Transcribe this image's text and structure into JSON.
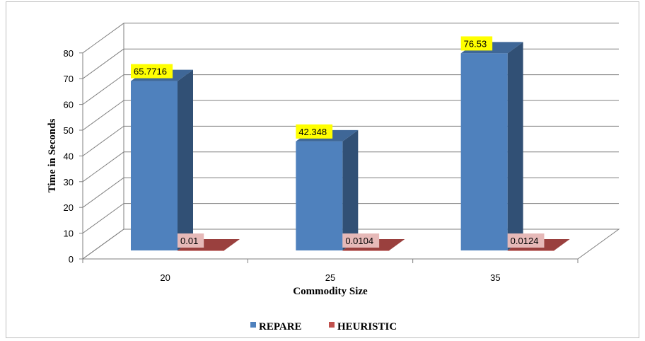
{
  "chart_data": {
    "type": "bar",
    "categories": [
      "20",
      "25",
      "35"
    ],
    "series": [
      {
        "name": "REPARE",
        "values": [
          65.7716,
          42.348,
          76.53
        ],
        "labels": [
          "65.7716",
          "42.348",
          "76.53"
        ],
        "color": "#4f81bd",
        "label_bg": "#ffff00"
      },
      {
        "name": "HEURISTIC",
        "values": [
          0.01,
          0.0104,
          0.0124
        ],
        "labels": [
          "0.01",
          "0.0104",
          "0.0124"
        ],
        "color": "#c0504d",
        "label_bg": "#e6b9b8"
      }
    ],
    "xlabel": "Commodity Size",
    "ylabel": "Time in Seconds",
    "ylim": [
      0,
      80
    ],
    "yticks": [
      "0",
      "10",
      "20",
      "30",
      "40",
      "50",
      "60",
      "70",
      "80"
    ],
    "grid": true,
    "legend_position": "bottom",
    "style": "3d-clustered-column"
  }
}
